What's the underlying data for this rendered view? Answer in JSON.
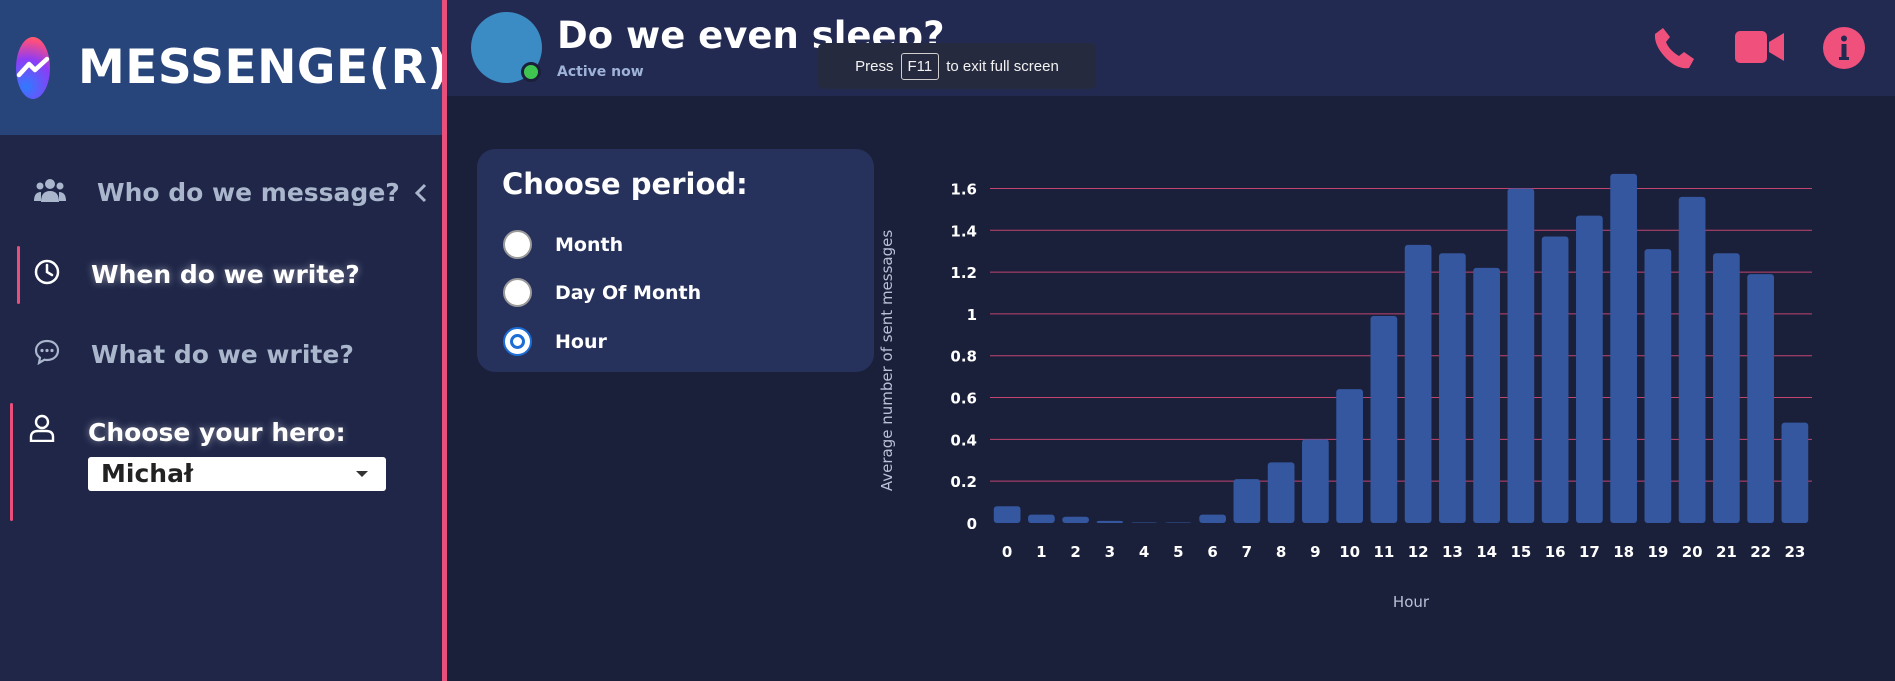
{
  "app": {
    "brand": "MESSENGE(R)",
    "logo_icon": "messenger-logo-icon",
    "accent": "#e94f7b",
    "sidebar_bg": "#1f2648",
    "header_bg": "#27447b"
  },
  "sidebar": {
    "items": [
      {
        "label": "Who do we message?",
        "icon": "users-icon",
        "state": "muted",
        "has_chevron": true
      },
      {
        "label": "When do we write?",
        "icon": "clock-icon",
        "state": "active"
      },
      {
        "label": "What do we write?",
        "icon": "chat-bubble-icon",
        "state": "muted"
      },
      {
        "label": "Choose your hero:",
        "icon": "user-icon",
        "state": "active"
      }
    ],
    "hero_select": {
      "value": "Michał"
    }
  },
  "header": {
    "title": "Do we even sleep?",
    "status": "Active now",
    "actions": [
      "phone-icon",
      "video-icon",
      "info-icon"
    ],
    "action_color": "#f0507c"
  },
  "toast": {
    "prefix": "Press",
    "key": "F11",
    "suffix": "to exit full screen"
  },
  "period": {
    "title": "Choose period:",
    "options": [
      {
        "label": "Month",
        "selected": false
      },
      {
        "label": "Day Of Month",
        "selected": false
      },
      {
        "label": "Hour",
        "selected": true
      }
    ]
  },
  "chart_data": {
    "type": "bar",
    "xlabel": "Hour",
    "ylabel": "Average number of sent messages",
    "categories": [
      "0",
      "1",
      "2",
      "3",
      "4",
      "5",
      "6",
      "7",
      "8",
      "9",
      "10",
      "11",
      "12",
      "13",
      "14",
      "15",
      "16",
      "17",
      "18",
      "19",
      "20",
      "21",
      "22",
      "23"
    ],
    "values": [
      0.08,
      0.04,
      0.03,
      0.01,
      0.0,
      0.0,
      0.04,
      0.21,
      0.29,
      0.4,
      0.64,
      0.99,
      1.33,
      1.29,
      1.22,
      1.6,
      1.37,
      1.47,
      1.67,
      1.31,
      1.56,
      1.29,
      1.19,
      0.48
    ],
    "yticks": [
      "0",
      "0.2",
      "0.4",
      "0.6",
      "0.8",
      "1",
      "1.2",
      "1.4",
      "1.6"
    ],
    "ylim": [
      0,
      1.6
    ],
    "grid": true,
    "bar_color": "#3457a0",
    "grid_color": "#c2456f"
  }
}
